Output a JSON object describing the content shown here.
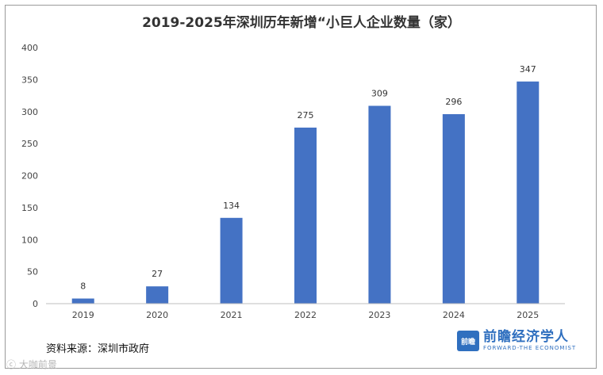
{
  "chart_data": {
    "type": "bar",
    "title": "2019-2025年深圳历年新增“小巨人企业数量（家）",
    "categories": [
      "2019",
      "2020",
      "2021",
      "2022",
      "2023",
      "2024",
      "2025"
    ],
    "values": [
      8,
      27,
      134,
      275,
      309,
      296,
      347
    ],
    "ylim": [
      0,
      400
    ],
    "yticks": [
      0,
      50,
      100,
      150,
      200,
      250,
      300,
      350,
      400
    ],
    "bar_color": "#4472c4",
    "grid": false,
    "legend": "none"
  },
  "source": "资料来源：深圳市政府",
  "brand": {
    "logo_text": "前瞻",
    "name": "前瞻经济学人",
    "subtitle": "FORWARD-THE ECONOMIST"
  },
  "corner_mark": "ⓒ 大咖前景"
}
